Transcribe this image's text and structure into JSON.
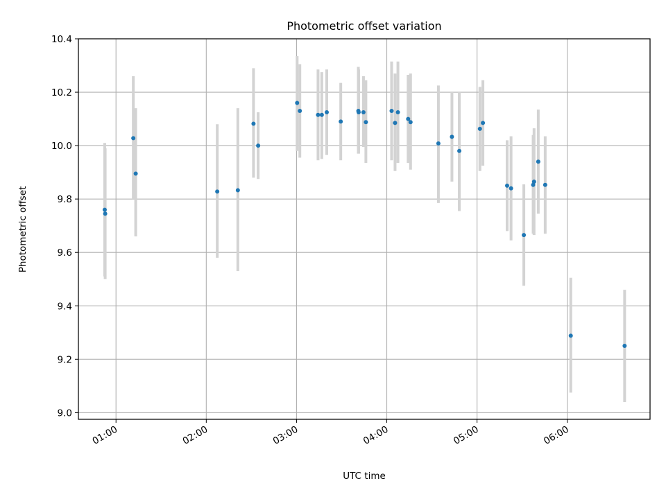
{
  "chart_data": {
    "type": "scatter",
    "title": "Photometric offset variation",
    "xlabel": "UTC time",
    "ylabel": "Photometric offset",
    "xlim": [
      "00:35",
      "06:55"
    ],
    "ylim": [
      8.975,
      10.4
    ],
    "xticks": [
      "01:00",
      "02:00",
      "03:00",
      "04:00",
      "05:00",
      "06:00"
    ],
    "yticks": [
      "9.0",
      "9.2",
      "9.4",
      "9.6",
      "9.8",
      "10.0",
      "10.2",
      "10.4"
    ],
    "grid": true,
    "colors": {
      "point": "#1f77b4",
      "errorbar": "#d3d3d3",
      "grid": "#b0b0b0"
    },
    "series": [
      {
        "points": [
          {
            "x": "00:52:30",
            "y": 9.76,
            "lo": 9.51,
            "hi": 10.01
          },
          {
            "x": "00:52:48",
            "y": 9.745,
            "lo": 9.5,
            "hi": 9.99
          },
          {
            "x": "01:11:30",
            "y": 10.028,
            "lo": 9.8,
            "hi": 10.26
          },
          {
            "x": "01:13:06",
            "y": 9.895,
            "lo": 9.66,
            "hi": 10.14
          },
          {
            "x": "02:07:18",
            "y": 9.828,
            "lo": 9.58,
            "hi": 10.08
          },
          {
            "x": "02:21:00",
            "y": 9.833,
            "lo": 9.53,
            "hi": 10.14
          },
          {
            "x": "02:31:24",
            "y": 10.082,
            "lo": 9.88,
            "hi": 10.29
          },
          {
            "x": "02:34:30",
            "y": 10.0,
            "lo": 9.875,
            "hi": 10.125
          },
          {
            "x": "03:00:24",
            "y": 10.16,
            "lo": 9.98,
            "hi": 10.335
          },
          {
            "x": "03:02:12",
            "y": 10.13,
            "lo": 9.955,
            "hi": 10.305
          },
          {
            "x": "03:14:18",
            "y": 10.115,
            "lo": 9.945,
            "hi": 10.285
          },
          {
            "x": "03:16:48",
            "y": 10.115,
            "lo": 9.95,
            "hi": 10.275
          },
          {
            "x": "03:20:06",
            "y": 10.125,
            "lo": 9.965,
            "hi": 10.285
          },
          {
            "x": "03:29:24",
            "y": 10.09,
            "lo": 9.945,
            "hi": 10.235
          },
          {
            "x": "03:41:06",
            "y": 10.13,
            "lo": 9.97,
            "hi": 10.295
          },
          {
            "x": "03:41:18",
            "y": 10.125,
            "lo": 9.97,
            "hi": 10.285
          },
          {
            "x": "03:44:30",
            "y": 10.125,
            "lo": 9.995,
            "hi": 10.26
          },
          {
            "x": "03:46:06",
            "y": 10.088,
            "lo": 9.935,
            "hi": 10.245
          },
          {
            "x": "04:03:12",
            "y": 10.13,
            "lo": 9.945,
            "hi": 10.315
          },
          {
            "x": "04:05:30",
            "y": 10.085,
            "lo": 9.905,
            "hi": 10.27
          },
          {
            "x": "04:07:24",
            "y": 10.125,
            "lo": 9.935,
            "hi": 10.315
          },
          {
            "x": "04:14:12",
            "y": 10.1,
            "lo": 9.935,
            "hi": 10.265
          },
          {
            "x": "04:15:48",
            "y": 10.088,
            "lo": 9.91,
            "hi": 10.27
          },
          {
            "x": "04:34:18",
            "y": 10.008,
            "lo": 9.785,
            "hi": 10.225
          },
          {
            "x": "04:43:18",
            "y": 10.033,
            "lo": 9.865,
            "hi": 10.2
          },
          {
            "x": "04:48:12",
            "y": 9.98,
            "lo": 9.755,
            "hi": 10.2
          },
          {
            "x": "05:01:54",
            "y": 10.063,
            "lo": 9.905,
            "hi": 10.22
          },
          {
            "x": "05:03:54",
            "y": 10.085,
            "lo": 9.925,
            "hi": 10.245
          },
          {
            "x": "05:20:00",
            "y": 9.85,
            "lo": 9.68,
            "hi": 10.02
          },
          {
            "x": "05:22:36",
            "y": 9.84,
            "lo": 9.645,
            "hi": 10.035
          },
          {
            "x": "05:31:06",
            "y": 9.665,
            "lo": 9.475,
            "hi": 9.855
          },
          {
            "x": "05:37:18",
            "y": 9.853,
            "lo": 9.67,
            "hi": 10.04
          },
          {
            "x": "05:37:54",
            "y": 9.865,
            "lo": 9.665,
            "hi": 10.065
          },
          {
            "x": "05:40:42",
            "y": 9.94,
            "lo": 9.745,
            "hi": 10.135
          },
          {
            "x": "05:45:18",
            "y": 9.853,
            "lo": 9.67,
            "hi": 10.035
          },
          {
            "x": "06:02:18",
            "y": 9.288,
            "lo": 9.075,
            "hi": 9.505
          },
          {
            "x": "06:38:06",
            "y": 9.25,
            "lo": 9.04,
            "hi": 9.46
          }
        ]
      }
    ]
  }
}
